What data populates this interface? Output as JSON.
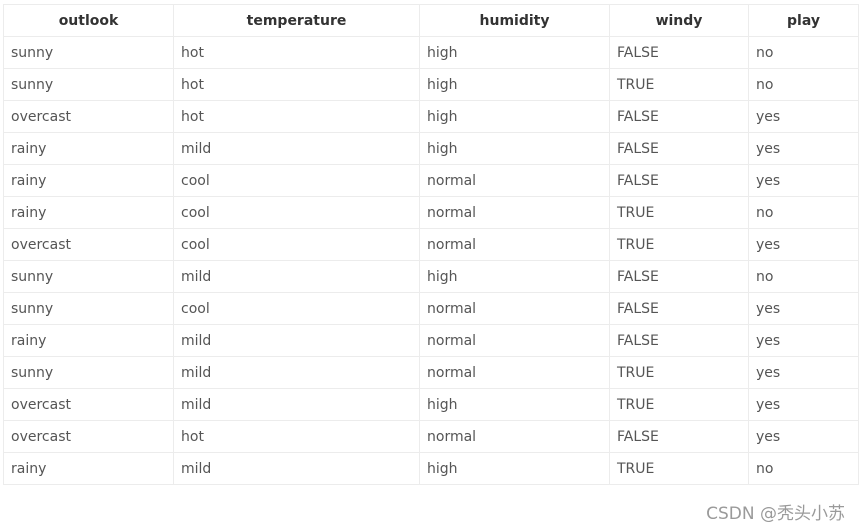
{
  "table": {
    "headers": [
      "outlook",
      "temperature",
      "humidity",
      "windy",
      "play"
    ],
    "rows": [
      [
        "sunny",
        "hot",
        "high",
        "FALSE",
        "no"
      ],
      [
        "sunny",
        "hot",
        "high",
        "TRUE",
        "no"
      ],
      [
        "overcast",
        "hot",
        "high",
        "FALSE",
        "yes"
      ],
      [
        "rainy",
        "mild",
        "high",
        "FALSE",
        "yes"
      ],
      [
        "rainy",
        "cool",
        "normal",
        "FALSE",
        "yes"
      ],
      [
        "rainy",
        "cool",
        "normal",
        "TRUE",
        "no"
      ],
      [
        "overcast",
        "cool",
        "normal",
        "TRUE",
        "yes"
      ],
      [
        "sunny",
        "mild",
        "high",
        "FALSE",
        "no"
      ],
      [
        "sunny",
        "cool",
        "normal",
        "FALSE",
        "yes"
      ],
      [
        "rainy",
        "mild",
        "normal",
        "FALSE",
        "yes"
      ],
      [
        "sunny",
        "mild",
        "normal",
        "TRUE",
        "yes"
      ],
      [
        "overcast",
        "mild",
        "high",
        "TRUE",
        "yes"
      ],
      [
        "overcast",
        "hot",
        "normal",
        "FALSE",
        "yes"
      ],
      [
        "rainy",
        "mild",
        "high",
        "TRUE",
        "no"
      ]
    ]
  },
  "watermark": "CSDN @秃头小苏"
}
